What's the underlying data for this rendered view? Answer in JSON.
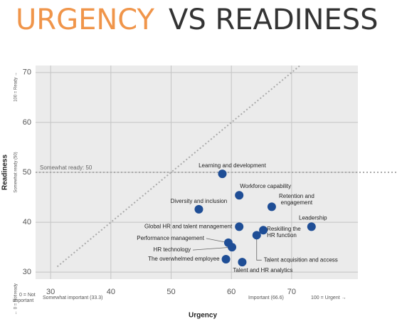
{
  "chart_data": {
    "type": "scatter",
    "title": {
      "highlight": "URGENCY",
      "rest": "VS READINESS"
    },
    "x_label": "Urgency",
    "y_label": "Readiness",
    "x": [
      58.5,
      61.3,
      66.7,
      54.6,
      73.3,
      61.3,
      65.3,
      64.2,
      59.5,
      60.1,
      59.1,
      61.8
    ],
    "values": [
      49.7,
      45.4,
      43.1,
      42.6,
      39.1,
      39.1,
      38.4,
      37.4,
      35.9,
      35.0,
      32.6,
      32.0
    ],
    "point_labels": [
      [
        "Learning and development"
      ],
      [
        "Workforce capability"
      ],
      [
        "Retention and",
        "engagement"
      ],
      [
        "Diversity and inclusion"
      ],
      [
        "Leadership"
      ],
      [
        "Global HR and talent management"
      ],
      [
        "Reskilling the",
        "HR function"
      ],
      [
        "Talent acquisition and access"
      ],
      [
        "Performance management"
      ],
      [
        "HR technology"
      ],
      [
        "The overwhelmed employee"
      ],
      [
        "Talent and HR analytics"
      ]
    ],
    "color": "#1f4e96",
    "xlim": [
      27.5,
      81
    ],
    "ylim": [
      28.6,
      71.4
    ],
    "xticks": [
      30,
      40,
      50,
      60,
      70
    ],
    "yticks": [
      30,
      40,
      50,
      60,
      70
    ],
    "grid": true,
    "reference_line": {
      "value": 50,
      "label": "Somewhat ready: 50"
    },
    "diagonal": true,
    "y_notes": [
      "100 = Ready →",
      "Somewhat ready (50)",
      "← 0 = Not ready"
    ],
    "x_notes": [
      [
        "← 0 = Not",
        "important"
      ],
      [
        "Somewhat important (33.3)"
      ],
      [
        "Important (66.6)"
      ],
      [
        "100 = Urgent →"
      ]
    ]
  }
}
